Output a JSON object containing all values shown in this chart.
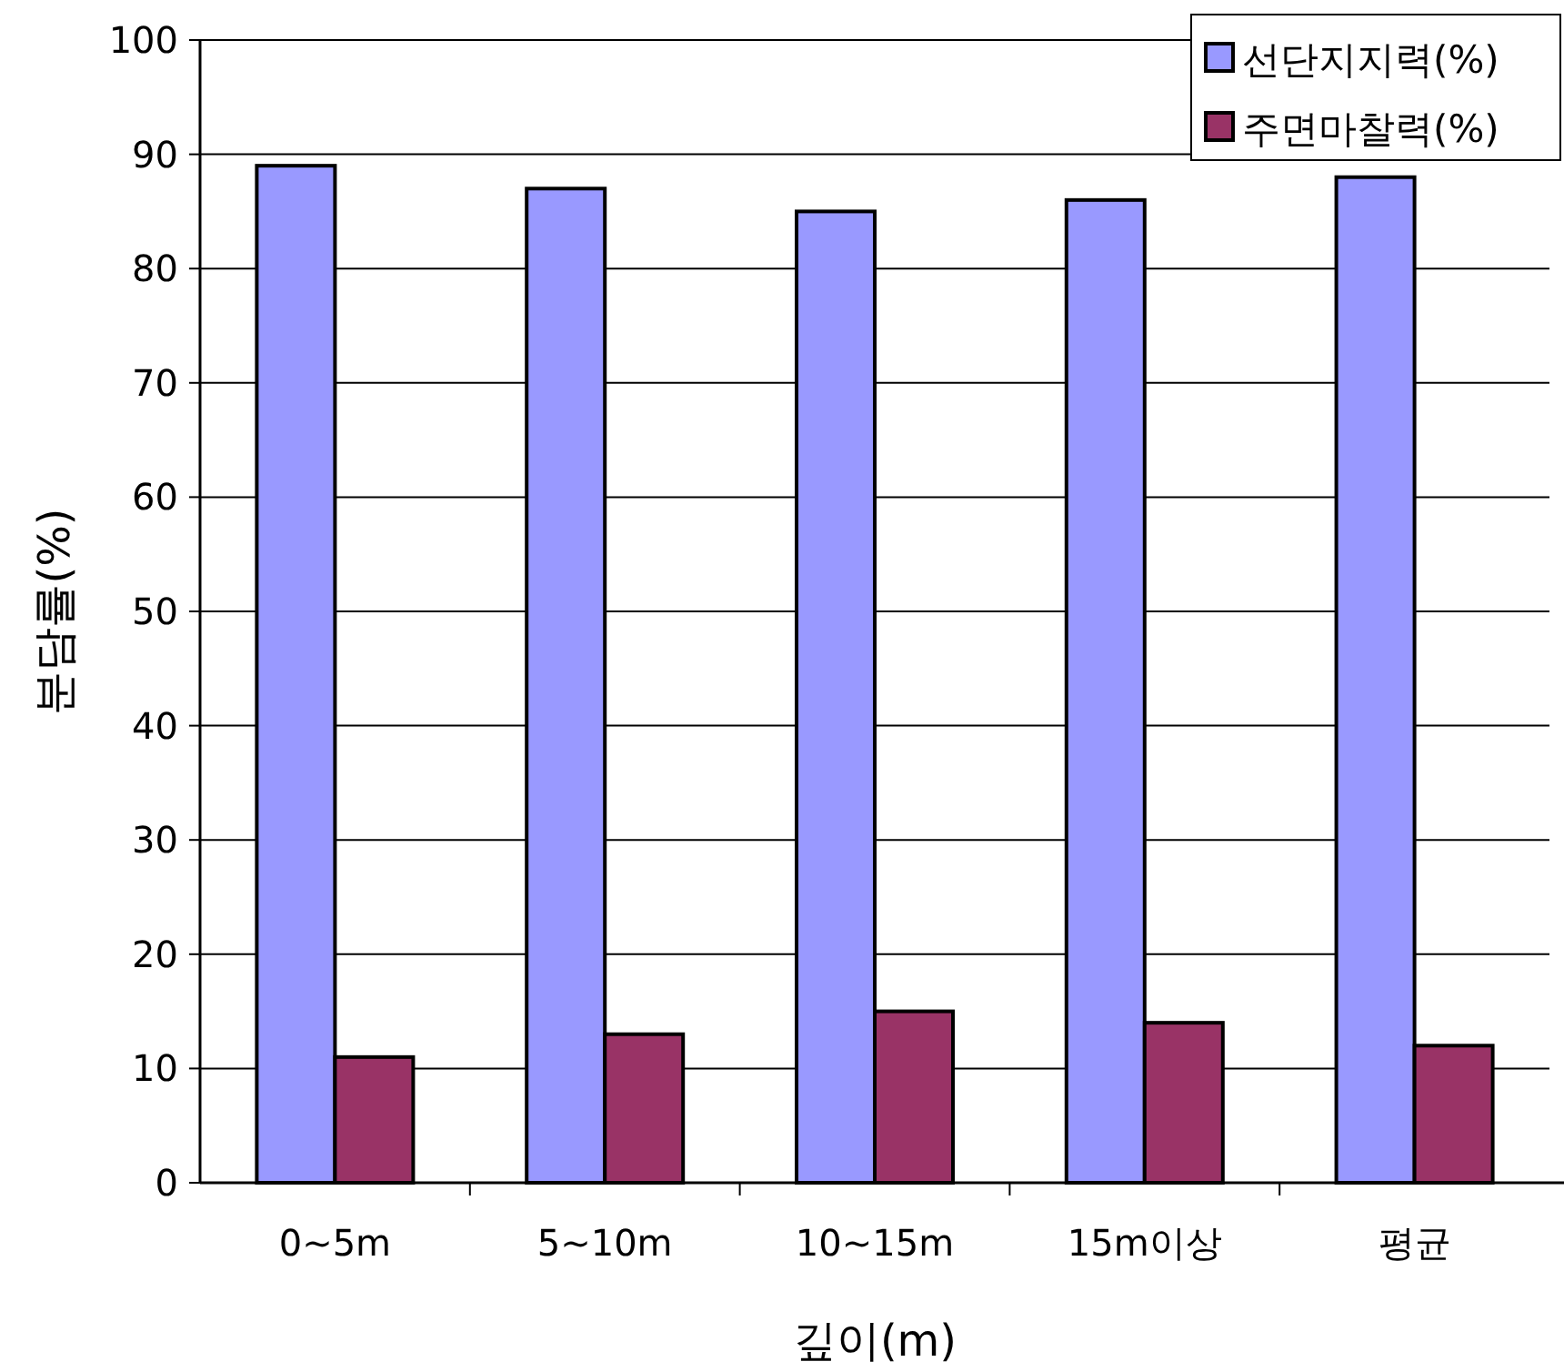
{
  "chart_data": {
    "type": "bar",
    "xlabel": "깊이(m)",
    "ylabel": "분담률(%)",
    "categories": [
      "0~5m",
      "5~10m",
      "10~15m",
      "15m이상",
      "평균"
    ],
    "series": [
      {
        "name": "선단지지력(%)",
        "color": "#9999ff",
        "values": [
          89,
          87,
          85,
          86,
          88
        ]
      },
      {
        "name": "주면마찰력(%)",
        "color": "#993366",
        "values": [
          11,
          13,
          15,
          14,
          12
        ]
      }
    ],
    "ylim": [
      0,
      100
    ],
    "yticks": [
      0,
      10,
      20,
      30,
      40,
      50,
      60,
      70,
      80,
      90,
      100
    ],
    "grid": "y",
    "legend": "top right"
  }
}
